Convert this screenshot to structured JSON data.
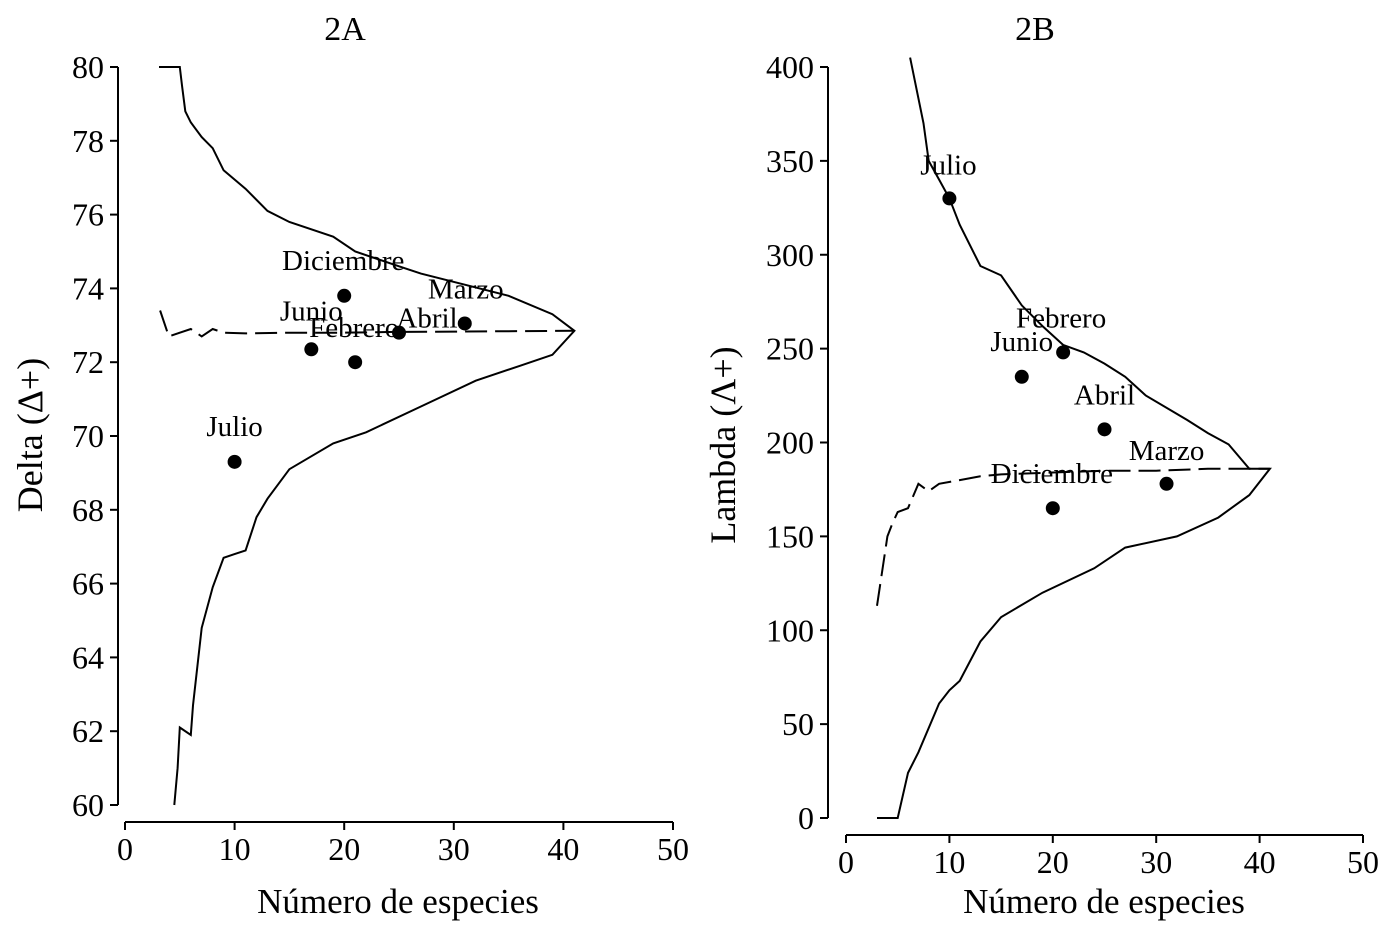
{
  "chart_data": [
    {
      "type": "scatter",
      "title": "2A",
      "xlabel": "Número de especies",
      "ylabel": "Delta (Δ+)",
      "xlim": [
        0,
        50
      ],
      "ylim": [
        60,
        80
      ],
      "xticks": [
        0,
        10,
        20,
        30,
        40,
        50
      ],
      "yticks": [
        60,
        62,
        64,
        66,
        68,
        70,
        72,
        74,
        76,
        78,
        80
      ],
      "points": [
        {
          "label": "Diciembre",
          "x": 20,
          "y": 73.8
        },
        {
          "label": "Abril",
          "x": 25,
          "y": 72.8
        },
        {
          "label": "Marzo",
          "x": 31,
          "y": 73.05
        },
        {
          "label": "Junio",
          "x": 17,
          "y": 72.35
        },
        {
          "label": "Febrero",
          "x": 21,
          "y": 72.0
        },
        {
          "label": "Julio",
          "x": 10,
          "y": 69.3
        }
      ],
      "curves": [
        {
          "style": "solid",
          "points": [
            [
              3.1,
              80
            ],
            [
              5,
              80
            ],
            [
              5.2,
              79.5
            ],
            [
              5.5,
              78.8
            ],
            [
              6,
              78.5
            ],
            [
              7,
              78.1
            ],
            [
              8,
              77.8
            ],
            [
              9,
              77.2
            ],
            [
              11,
              76.7
            ],
            [
              13,
              76.1
            ],
            [
              15,
              75.8
            ],
            [
              19,
              75.4
            ],
            [
              21,
              75.0
            ],
            [
              25,
              74.6
            ],
            [
              27,
              74.4
            ],
            [
              31,
              74.1
            ],
            [
              35,
              73.8
            ],
            [
              39,
              73.3
            ],
            [
              41,
              72.85
            ],
            [
              39,
              72.2
            ],
            [
              36,
              71.9
            ],
            [
              32,
              71.5
            ],
            [
              27,
              70.8
            ],
            [
              22,
              70.1
            ],
            [
              19,
              69.8
            ],
            [
              15,
              69.1
            ],
            [
              13,
              68.3
            ],
            [
              12,
              67.8
            ],
            [
              11,
              66.9
            ],
            [
              10,
              66.8
            ],
            [
              9,
              66.7
            ],
            [
              8,
              65.9
            ],
            [
              7,
              64.8
            ],
            [
              6.2,
              62.7
            ],
            [
              6,
              61.9
            ],
            [
              5,
              62.1
            ],
            [
              4.8,
              61.0
            ],
            [
              4.5,
              60
            ]
          ]
        },
        {
          "style": "dashed",
          "points": [
            [
              3.2,
              73.4
            ],
            [
              4,
              72.7
            ],
            [
              5,
              72.8
            ],
            [
              6,
              72.9
            ],
            [
              7,
              72.7
            ],
            [
              8,
              72.9
            ],
            [
              9,
              72.8
            ],
            [
              11,
              72.78
            ],
            [
              15,
              72.8
            ],
            [
              20,
              72.8
            ],
            [
              25,
              72.82
            ],
            [
              30,
              72.83
            ],
            [
              35,
              72.84
            ],
            [
              41,
              72.85
            ]
          ]
        }
      ]
    },
    {
      "type": "scatter",
      "title": "2B",
      "xlabel": "Número de especies",
      "ylabel": "Lambda (Λ+)",
      "xlim": [
        0,
        50
      ],
      "ylim": [
        0,
        400
      ],
      "xticks": [
        0,
        10,
        20,
        30,
        40,
        50
      ],
      "yticks": [
        0,
        50,
        100,
        150,
        200,
        250,
        300,
        350,
        400
      ],
      "points": [
        {
          "label": "Julio",
          "x": 10,
          "y": 330
        },
        {
          "label": "Febrero",
          "x": 21,
          "y": 248
        },
        {
          "label": "Junio",
          "x": 17,
          "y": 235
        },
        {
          "label": "Abril",
          "x": 25,
          "y": 207
        },
        {
          "label": "Marzo",
          "x": 31,
          "y": 178
        },
        {
          "label": "Diciembre",
          "x": 20,
          "y": 165
        }
      ],
      "curves": [
        {
          "style": "solid",
          "points": [
            [
              6.2,
              405
            ],
            [
              7.5,
              370
            ],
            [
              8,
              350
            ],
            [
              9,
              340
            ],
            [
              10,
              330
            ],
            [
              11,
              316
            ],
            [
              13,
              294
            ],
            [
              15,
              289
            ],
            [
              17,
              273
            ],
            [
              19,
              262
            ],
            [
              21,
              252
            ],
            [
              23,
              248
            ],
            [
              25,
              242
            ],
            [
              27,
              235
            ],
            [
              29,
              225
            ],
            [
              33,
              212
            ],
            [
              35,
              205
            ],
            [
              37,
              199
            ],
            [
              39,
              186
            ],
            [
              41,
              186
            ],
            [
              39,
              172
            ],
            [
              36,
              160
            ],
            [
              32,
              150
            ],
            [
              27,
              144
            ],
            [
              24,
              133
            ],
            [
              19,
              120
            ],
            [
              15,
              107
            ],
            [
              13,
              94
            ],
            [
              11,
              73
            ],
            [
              10,
              68
            ],
            [
              9,
              61
            ],
            [
              7,
              35
            ],
            [
              6,
              24
            ],
            [
              5,
              0
            ],
            [
              3,
              0
            ]
          ]
        },
        {
          "style": "dashed",
          "points": [
            [
              3,
              113
            ],
            [
              4,
              150
            ],
            [
              4.5,
              157
            ],
            [
              5,
              163
            ],
            [
              6,
              165
            ],
            [
              7,
              178
            ],
            [
              8,
              174
            ],
            [
              9,
              178
            ],
            [
              11,
              180
            ],
            [
              13,
              182
            ],
            [
              15,
              183
            ],
            [
              20,
              184
            ],
            [
              25,
              185
            ],
            [
              30,
              185
            ],
            [
              35,
              186
            ],
            [
              41,
              186
            ]
          ]
        }
      ]
    }
  ]
}
